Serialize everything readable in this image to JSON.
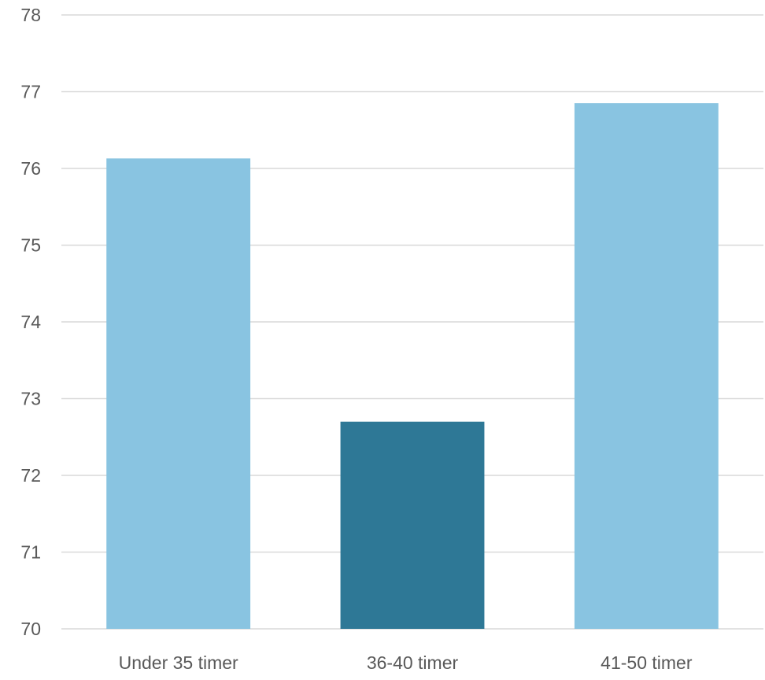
{
  "chart_data": {
    "type": "bar",
    "categories": [
      "Under 35 timer",
      "36-40 timer",
      "41-50 timer"
    ],
    "values": [
      76.13,
      72.7,
      76.85
    ],
    "ylim": [
      70,
      78
    ],
    "yticks": [
      70,
      71,
      72,
      73,
      74,
      75,
      76,
      77,
      78
    ],
    "grid": true,
    "legend": "none",
    "colors": [
      "#89c4e1",
      "#2e7896",
      "#89c4e1"
    ]
  }
}
